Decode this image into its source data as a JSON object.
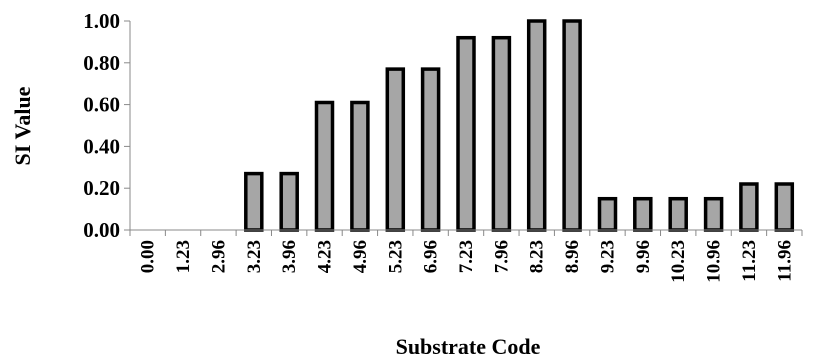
{
  "colors": {
    "bar_fill": "#a6a6a6",
    "bar_stroke": "#000000",
    "axis": "#888888",
    "text": "#000000"
  },
  "chart_data": {
    "type": "bar",
    "xlabel": "Substrate Code",
    "ylabel": "SI Value",
    "ylim": [
      0,
      1
    ],
    "yticks": [
      "0.00",
      "0.20",
      "0.40",
      "0.60",
      "0.80",
      "1.00"
    ],
    "grid": false,
    "legend": "none",
    "categories": [
      "0.00",
      "1.23",
      "2.96",
      "3.23",
      "3.96",
      "4.23",
      "4.96",
      "5.23",
      "6.96",
      "7.23",
      "7.96",
      "8.23",
      "8.96",
      "9.23",
      "9.96",
      "10.23",
      "10.96",
      "11.23",
      "11.96"
    ],
    "values": [
      0,
      0,
      0,
      0.27,
      0.27,
      0.61,
      0.61,
      0.77,
      0.77,
      0.92,
      0.92,
      1.0,
      1.0,
      0.15,
      0.15,
      0.15,
      0.15,
      0.22,
      0.22
    ]
  }
}
